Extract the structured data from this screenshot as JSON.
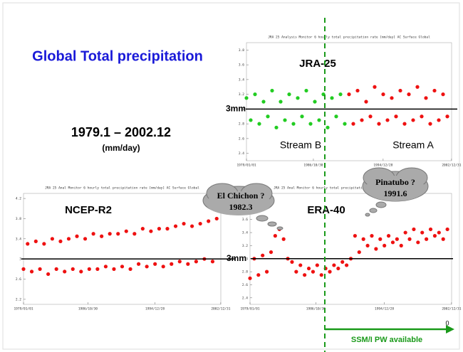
{
  "slide": {
    "title": "Global Total precipitation",
    "period": "1979.1 – 2002.12",
    "unit": "(mm/day)",
    "annotations": [
      {
        "text": "El Chichon ?",
        "date": "1982.3"
      },
      {
        "text": "Pinatubo ?",
        "date": "1991.6"
      }
    ],
    "ssmi": "SSM/I PW available",
    "arrow_mark": "0",
    "panels": [
      {
        "name": "JRA-25",
        "title": "JRA 25 Analysis Monitor 6 hourly total precipitation rate [mm/day] AC Surface Global",
        "xlim": [
          1979,
          2003
        ],
        "ylim": [
          2.3,
          3.9
        ],
        "xticks": [
          {
            "value": 1979,
            "label": "1979/01/01"
          },
          {
            "value": 1986.83,
            "label": "1986/10/30"
          },
          {
            "value": 1994.99,
            "label": "1994/12/28"
          },
          {
            "value": 2002.99,
            "label": "2002/12/31"
          }
        ],
        "yticks": [
          2.4,
          2.6,
          2.8,
          3,
          3.2,
          3.4,
          3.6,
          3.8
        ],
        "ref": {
          "value": 3,
          "label": "3mm"
        },
        "series": [
          {
            "name": "Stream B",
            "color": "#22cc22",
            "x": [
              1979,
              1979.5,
              1980,
              1980.5,
              1981,
              1981.5,
              1982,
              1982.5,
              1983,
              1983.5,
              1984,
              1984.5,
              1985,
              1985.5,
              1986,
              1986.5,
              1987,
              1987.5,
              1988,
              1988.5,
              1989,
              1989.5,
              1990,
              1990.5
            ],
            "values": [
              3.15,
              2.85,
              3.2,
              2.8,
              3.1,
              2.9,
              3.25,
              2.75,
              3.1,
              2.85,
              3.2,
              2.8,
              3.15,
              2.9,
              3.25,
              2.8,
              3.1,
              2.85,
              3.2,
              2.75,
              3.15,
              2.9,
              3.2,
              2.8
            ]
          },
          {
            "name": "Stream A",
            "color": "#ee1111",
            "x": [
              1991,
              1991.5,
              1992,
              1992.5,
              1993,
              1993.5,
              1994,
              1994.5,
              1995,
              1995.5,
              1996,
              1996.5,
              1997,
              1997.5,
              1998,
              1998.5,
              1999,
              1999.5,
              2000,
              2000.5,
              2001,
              2001.5,
              2002,
              2002.5
            ],
            "values": [
              3.2,
              2.8,
              3.25,
              2.85,
              3.1,
              2.9,
              3.3,
              2.8,
              3.2,
              2.85,
              3.15,
              2.9,
              3.25,
              2.8,
              3.2,
              2.85,
              3.3,
              2.9,
              3.15,
              2.8,
              3.25,
              2.85,
              3.2,
              2.9
            ]
          }
        ]
      },
      {
        "name": "NCEP-R2",
        "title": "JRA 25 Anal Monitor 6 hourly total precipitation rate [mm/day] AC Surface Global",
        "xlim": [
          1979,
          2003
        ],
        "ylim": [
          2.1,
          4.3
        ],
        "xticks": [
          {
            "value": 1979,
            "label": "1979/01/01"
          },
          {
            "value": 1986.83,
            "label": "1986/10/30"
          },
          {
            "value": 1994.99,
            "label": "1994/12/28"
          },
          {
            "value": 2002.99,
            "label": "2002/12/31"
          }
        ],
        "yticks": [
          2.2,
          2.6,
          3,
          3.4,
          3.8,
          4.2
        ],
        "ref": {
          "value": 3,
          "label": "3mm"
        },
        "series": [
          {
            "color": "#ee1111",
            "x": [
              1979,
              1979.5,
              1980,
              1980.5,
              1981,
              1981.5,
              1982,
              1982.5,
              1983,
              1983.5,
              1984,
              1984.5,
              1985,
              1985.5,
              1986,
              1986.5,
              1987,
              1987.5,
              1988,
              1988.5,
              1989,
              1989.5,
              1990,
              1990.5,
              1991,
              1991.5,
              1992,
              1992.5,
              1993,
              1993.5,
              1994,
              1994.5,
              1995,
              1995.5,
              1996,
              1996.5,
              1997,
              1997.5,
              1998,
              1998.5,
              1999,
              1999.5,
              2000,
              2000.5,
              2001,
              2001.5,
              2002,
              2002.5
            ],
            "values": [
              2.8,
              3.3,
              2.75,
              3.35,
              2.8,
              3.3,
              2.7,
              3.4,
              2.8,
              3.35,
              2.75,
              3.4,
              2.8,
              3.45,
              2.75,
              3.4,
              2.8,
              3.5,
              2.8,
              3.45,
              2.85,
              3.5,
              2.8,
              3.5,
              2.85,
              3.55,
              2.8,
              3.5,
              2.9,
              3.6,
              2.85,
              3.55,
              2.9,
              3.6,
              2.85,
              3.6,
              2.9,
              3.65,
              2.95,
              3.7,
              2.9,
              3.65,
              2.95,
              3.7,
              3.0,
              3.75,
              2.95,
              3.8
            ]
          }
        ]
      },
      {
        "name": "ERA-40",
        "title": "JRA 25 Anal Monitor 6 hourly total precipitation rate [mm/day] AC Surface Global",
        "xlim": [
          1979,
          2003
        ],
        "ylim": [
          2.3,
          4.0
        ],
        "xticks": [
          {
            "value": 1979,
            "label": "1979/01/01"
          },
          {
            "value": 1986.83,
            "label": "1986/10/30"
          },
          {
            "value": 1994.99,
            "label": "1994/12/28"
          },
          {
            "value": 2002.99,
            "label": "2002/12/31"
          }
        ],
        "yticks": [
          2.4,
          2.6,
          2.8,
          3,
          3.2,
          3.4,
          3.6,
          3.8
        ],
        "ref": {
          "value": 3,
          "label": "3mm"
        },
        "series": [
          {
            "color": "#ee1111",
            "x": [
              1979,
              1979.5,
              1980,
              1980.5,
              1981,
              1981.5,
              1982,
              1982.5,
              1983,
              1983.5,
              1984,
              1984.5,
              1985,
              1985.5,
              1986,
              1986.5,
              1987,
              1987.5,
              1988,
              1988.5,
              1989,
              1989.5,
              1990,
              1990.5,
              1991,
              1991.5,
              1992,
              1992.5,
              1993,
              1993.5,
              1994,
              1994.5,
              1995,
              1995.5,
              1996,
              1996.5,
              1997,
              1997.5,
              1998,
              1998.5,
              1999,
              1999.5,
              2000,
              2000.5,
              2001,
              2001.5,
              2002,
              2002.5
            ],
            "values": [
              2.7,
              3.0,
              2.75,
              3.05,
              2.8,
              3.1,
              3.35,
              3.45,
              3.3,
              3.0,
              2.95,
              2.8,
              2.9,
              2.75,
              2.85,
              2.8,
              2.9,
              2.75,
              2.85,
              2.8,
              2.9,
              2.85,
              2.95,
              2.9,
              3.0,
              3.35,
              3.1,
              3.3,
              3.2,
              3.35,
              3.15,
              3.3,
              3.2,
              3.35,
              3.25,
              3.3,
              3.2,
              3.4,
              3.3,
              3.45,
              3.25,
              3.4,
              3.3,
              3.45,
              3.35,
              3.4,
              3.3,
              3.45
            ]
          }
        ]
      }
    ]
  }
}
